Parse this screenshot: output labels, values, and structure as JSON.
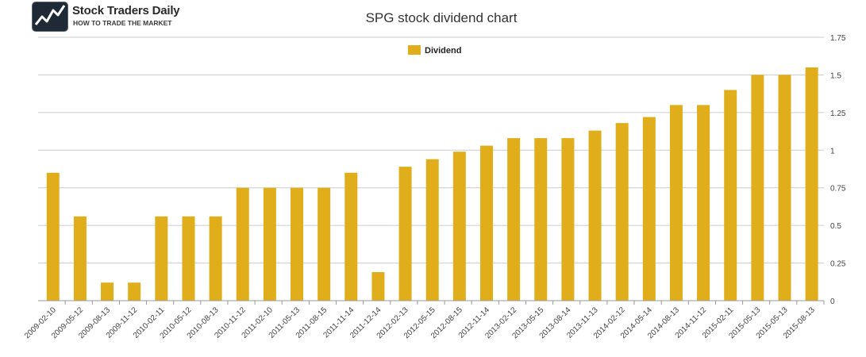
{
  "logo": {
    "title": "Stock Traders Daily",
    "subtitle": "HOW TO TRADE THE MARKET"
  },
  "colors": {
    "bar": "#e0ae1a",
    "grid": "#cccccc",
    "axis": "#999999"
  },
  "chart_data": {
    "type": "bar",
    "title": "SPG stock dividend chart",
    "xlabel": "",
    "ylabel": "",
    "ylim": [
      0,
      1.75
    ],
    "yticks": [
      "0",
      "0.25",
      "0.5",
      "0.75",
      "1",
      "1.25",
      "1.5",
      "1.75"
    ],
    "ytick_values": [
      0,
      0.25,
      0.5,
      0.75,
      1,
      1.25,
      1.5,
      1.75
    ],
    "y_axis_side": "right",
    "grid": true,
    "legend_position": "top-center",
    "categories": [
      "2009-02-10",
      "2009-05-12",
      "2009-08-13",
      "2009-11-12",
      "2010-02-11",
      "2010-05-12",
      "2010-08-13",
      "2010-11-12",
      "2011-02-10",
      "2011-05-13",
      "2011-08-15",
      "2011-11-14",
      "2011-12-14",
      "2012-02-13",
      "2012-05-15",
      "2012-08-15",
      "2012-11-14",
      "2013-02-12",
      "2013-05-15",
      "2013-08-14",
      "2013-11-13",
      "2014-02-12",
      "2014-05-14",
      "2014-08-13",
      "2014-11-12",
      "2015-02-11",
      "2015-05-13",
      "2015-05-13",
      "2015-08-13"
    ],
    "series": [
      {
        "name": "Dividend",
        "values": [
          0.85,
          0.56,
          0.12,
          0.12,
          0.56,
          0.56,
          0.56,
          0.75,
          0.75,
          0.75,
          0.75,
          0.85,
          0.19,
          0.89,
          0.94,
          0.99,
          1.03,
          1.08,
          1.08,
          1.08,
          1.13,
          1.18,
          1.22,
          1.3,
          1.3,
          1.4,
          1.5,
          1.5,
          1.55
        ]
      }
    ]
  }
}
